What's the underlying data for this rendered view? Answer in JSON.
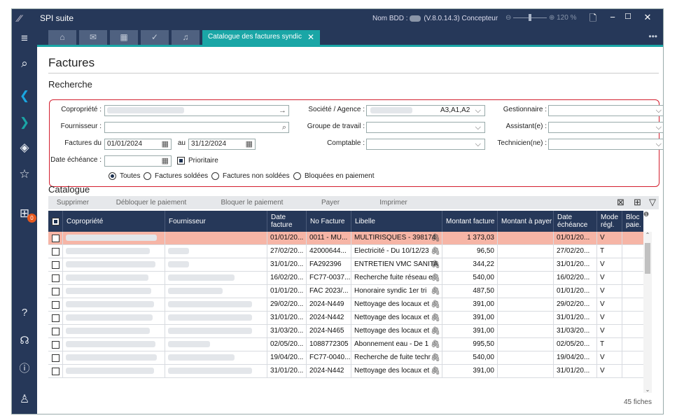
{
  "app": {
    "title": "SPI suite",
    "db_label": "Nom BDD :",
    "version": "(V.8.0.14.3)",
    "role": "Concepteur",
    "zoom": "120 %"
  },
  "tabs": {
    "active_label": "Catalogue des factures syndic"
  },
  "page": {
    "title": "Factures",
    "search_section": "Recherche",
    "catalogue_section": "Catalogue"
  },
  "form": {
    "copropriete_label": "Copropriété :",
    "fournisseur_label": "Fournisseur :",
    "factures_du_label": "Factures du",
    "date_from": "01/01/2024",
    "au_label": "au",
    "date_to": "31/12/2024",
    "date_echeance_label": "Date échéance :",
    "prioritaire_label": "Prioritaire",
    "societe_label": "Société / Agence :",
    "societe_value": "A3,A1,A2",
    "groupe_label": "Groupe de travail :",
    "comptable_label": "Comptable :",
    "gestionnaire_label": "Gestionnaire :",
    "assistant_label": "Assistant(e) :",
    "technicien_label": "Technicien(ne) :",
    "radios": [
      "Toutes",
      "Factures soldées",
      "Factures non soldées",
      "Bloquées en paiement"
    ]
  },
  "toolbar": {
    "supprimer": "Supprimer",
    "debloquer": "Débloquer le paiement",
    "bloquer": "Bloquer le paiement",
    "payer": "Payer",
    "imprimer": "Imprimer"
  },
  "columns": [
    "Copropriété",
    "Fournisseur",
    "Date facture",
    "No Facture",
    "Libelle",
    "Montant facture",
    "Montant à payer",
    "Date échéance",
    "Mode régl.",
    "Bloc paie."
  ],
  "rows": [
    {
      "date": "01/01/20...",
      "no": "0011 - MU...",
      "libelle": "MULTIRISQUES - 398174",
      "montant": "1 373,03",
      "echeance": "01/01/20...",
      "mode": "V"
    },
    {
      "date": "27/02/20...",
      "no": "42000644...",
      "libelle": "Electricité - Du 10/12/23",
      "montant": "96,50",
      "echeance": "27/02/20...",
      "mode": "T"
    },
    {
      "date": "31/01/20...",
      "no": "FA292396",
      "libelle": "ENTRETIEN VMC SANITA",
      "montant": "344,22",
      "echeance": "31/01/20...",
      "mode": "V"
    },
    {
      "date": "16/02/20...",
      "no": "FC77-0037...",
      "libelle": "Recherche fuite réseau e",
      "montant": "540,00",
      "echeance": "16/02/20...",
      "mode": "V"
    },
    {
      "date": "01/01/20...",
      "no": "FAC 2023/...",
      "libelle": "Honoraire syndic  1er tri",
      "montant": "487,50",
      "echeance": "01/01/20...",
      "mode": "V"
    },
    {
      "date": "29/02/20...",
      "no": "2024-N449",
      "libelle": "Nettoyage des locaux et",
      "montant": "391,00",
      "echeance": "29/02/20...",
      "mode": "V"
    },
    {
      "date": "31/01/20...",
      "no": "2024-N442",
      "libelle": "Nettoyage des locaux et",
      "montant": "391,00",
      "echeance": "31/01/20...",
      "mode": "V"
    },
    {
      "date": "31/03/20...",
      "no": "2024-N465",
      "libelle": "Nettoyage des locaux et",
      "montant": "391,00",
      "echeance": "31/03/20...",
      "mode": "V"
    },
    {
      "date": "02/05/20...",
      "no": "1088772305",
      "libelle": "Abonnement eau - De 1",
      "montant": "995,50",
      "echeance": "02/05/20...",
      "mode": "T"
    },
    {
      "date": "19/04/20...",
      "no": "FC77-0040...",
      "libelle": "Recherche de fuite techr",
      "montant": "540,00",
      "echeance": "19/04/20...",
      "mode": "V"
    },
    {
      "date": "31/01/20...",
      "no": "2024-N442",
      "libelle": "Nettoyage des locaux et",
      "montant": "391,00",
      "echeance": "31/01/20...",
      "mode": "V"
    }
  ],
  "count": "45 fiches",
  "colors": {
    "navy": "#263859",
    "teal": "#1aa6a6",
    "selected_row": "#f6b5a6",
    "highlight_border": "#d31e2e",
    "badge": "#e5581e"
  },
  "icons": {
    "sidebar": [
      "menu-icon",
      "search-icon",
      "back-arrow-icon",
      "forward-arrow-icon",
      "diamond-nav-icon",
      "star-icon",
      "network-icon",
      "help-icon",
      "headset-icon",
      "info-icon",
      "user-icon"
    ],
    "badge": "0"
  }
}
